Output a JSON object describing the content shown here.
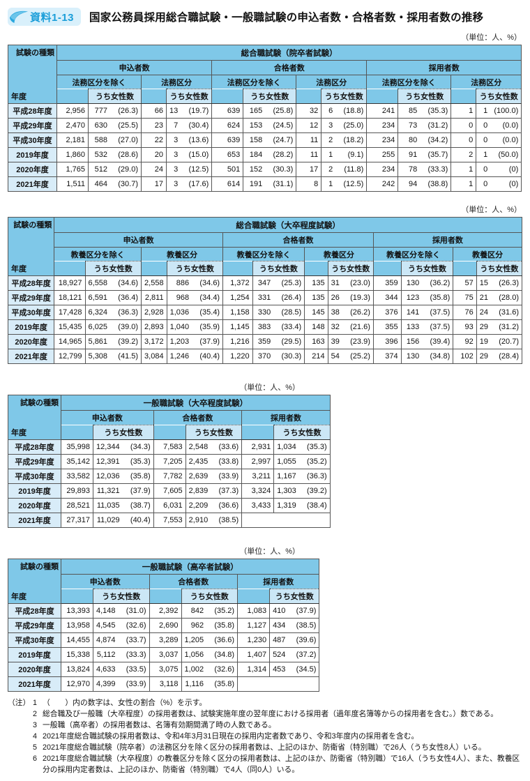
{
  "page": {
    "badge": "資料1-13",
    "title": "国家公務員採用総合職試験・一般職試験の申込者数・合格者数・採用者数の推移",
    "unit_label": "（単位：人、%）",
    "corner_top": "試験の種類",
    "corner_bottom": "年度"
  },
  "colors": {
    "header_blue": "#7fc8e8",
    "female_cell_blue": "#cbe7f6",
    "year_cell_blue": "#d8ecf8",
    "badge_bg": "#d9f0fb",
    "badge_text": "#1b9ed9",
    "border": "#333333"
  },
  "tables": [
    {
      "title": "総合職試験（院卒者試験）",
      "groups": [
        "申込者数",
        "合格者数",
        "採用者数"
      ],
      "division_labels": [
        "法務区分を除く",
        "法務区分"
      ],
      "female_label": "うち女性数",
      "rows": [
        {
          "year": "平成28年度",
          "cells": [
            "2,956",
            "777 (26.3)",
            "66",
            "13 (19.7)",
            "639",
            "165 (25.8)",
            "32",
            "6 (18.8)",
            "241",
            "85 (35.3)",
            "1",
            "1 (100.0)"
          ]
        },
        {
          "year": "平成29年度",
          "cells": [
            "2,470",
            "630 (25.5)",
            "23",
            "7 (30.4)",
            "624",
            "153 (24.5)",
            "12",
            "3 (25.0)",
            "234",
            "73 (31.2)",
            "0",
            "0 (0.0)"
          ]
        },
        {
          "year": "平成30年度",
          "cells": [
            "2,181",
            "588 (27.0)",
            "22",
            "3 (13.6)",
            "639",
            "158 (24.7)",
            "11",
            "2 (18.2)",
            "234",
            "80 (34.2)",
            "0",
            "0 (0.0)"
          ]
        },
        {
          "year": "2019年度",
          "cells": [
            "1,860",
            "532 (28.6)",
            "20",
            "3 (15.0)",
            "653",
            "184 (28.2)",
            "11",
            "1 (9.1)",
            "255",
            "91 (35.7)",
            "2",
            "1 (50.0)"
          ]
        },
        {
          "year": "2020年度",
          "cells": [
            "1,765",
            "512 (29.0)",
            "24",
            "3 (12.5)",
            "501",
            "152 (30.3)",
            "17",
            "2 (11.8)",
            "234",
            "78 (33.3)",
            "1",
            "0 (0)"
          ]
        },
        {
          "year": "2021年度",
          "cells": [
            "1,511",
            "464 (30.7)",
            "17",
            "3 (17.6)",
            "614",
            "191 (31.1)",
            "8",
            "1 (12.5)",
            "242",
            "94 (38.8)",
            "1",
            "0 (0)"
          ]
        }
      ]
    },
    {
      "title": "総合職試験（大卒程度試験）",
      "groups": [
        "申込者数",
        "合格者数",
        "採用者数"
      ],
      "division_labels": [
        "教養区分を除く",
        "教養区分"
      ],
      "female_label": "うち女性数",
      "rows": [
        {
          "year": "平成28年度",
          "cells": [
            "18,927",
            "6,558 (34.6)",
            "2,558",
            "886 (34.6)",
            "1,372",
            "347 (25.3)",
            "135",
            "31 (23.0)",
            "359",
            "130 (36.2)",
            "57",
            "15 (26.3)"
          ]
        },
        {
          "year": "平成29年度",
          "cells": [
            "18,121",
            "6,591 (36.4)",
            "2,811",
            "968 (34.4)",
            "1,254",
            "331 (26.4)",
            "135",
            "26 (19.3)",
            "344",
            "123 (35.8)",
            "75",
            "21 (28.0)"
          ]
        },
        {
          "year": "平成30年度",
          "cells": [
            "17,428",
            "6,324 (36.3)",
            "2,928",
            "1,036 (35.4)",
            "1,158",
            "330 (28.5)",
            "145",
            "38 (26.2)",
            "376",
            "141 (37.5)",
            "76",
            "24 (31.6)"
          ]
        },
        {
          "year": "2019年度",
          "cells": [
            "15,435",
            "6,025 (39.0)",
            "2,893",
            "1,040 (35.9)",
            "1,145",
            "383 (33.4)",
            "148",
            "32 (21.6)",
            "355",
            "133 (37.5)",
            "93",
            "29 (31.2)"
          ]
        },
        {
          "year": "2020年度",
          "cells": [
            "14,965",
            "5,861 (39.2)",
            "3,172",
            "1,203 (37.9)",
            "1,216",
            "359 (29.5)",
            "163",
            "39 (23.9)",
            "396",
            "156 (39.4)",
            "92",
            "19 (20.7)"
          ]
        },
        {
          "year": "2021年度",
          "cells": [
            "12,799",
            "5,308 (41.5)",
            "3,084",
            "1,246 (40.4)",
            "1,220",
            "370 (30.3)",
            "214",
            "54 (25.2)",
            "374",
            "130 (34.8)",
            "102",
            "29 (28.4)"
          ]
        }
      ]
    },
    {
      "title": "一般職試験（大卒程度試験）",
      "groups": [
        "申込者数",
        "合格者数",
        "採用者数"
      ],
      "female_label": "うち女性数",
      "rows": [
        {
          "year": "平成28年度",
          "cells": [
            "35,998",
            "12,344 (34.3)",
            "7,583",
            "2,548 (33.6)",
            "2,931",
            "1,034 (35.3)"
          ]
        },
        {
          "year": "平成29年度",
          "cells": [
            "35,142",
            "12,391 (35.3)",
            "7,205",
            "2,435 (33.8)",
            "2,997",
            "1,055 (35.2)"
          ]
        },
        {
          "year": "平成30年度",
          "cells": [
            "33,582",
            "12,036 (35.8)",
            "7,782",
            "2,639 (33.9)",
            "3,211",
            "1,167 (36.3)"
          ]
        },
        {
          "year": "2019年度",
          "cells": [
            "29,893",
            "11,321 (37.9)",
            "7,605",
            "2,839 (37.3)",
            "3,324",
            "1,303 (39.2)"
          ]
        },
        {
          "year": "2020年度",
          "cells": [
            "28,521",
            "11,035 (38.7)",
            "6,031",
            "2,209 (36.6)",
            "3,433",
            "1,319 (38.4)"
          ]
        },
        {
          "year": "2021年度",
          "cells": [
            "27,317",
            "11,029 (40.4)",
            "7,553",
            "2,910 (38.5)"
          ],
          "no_data_last_group": true
        }
      ]
    },
    {
      "title": "一般職試験（高卒者試験）",
      "groups": [
        "申込者数",
        "合格者数",
        "採用者数"
      ],
      "female_label": "うち女性数",
      "rows": [
        {
          "year": "平成28年度",
          "cells": [
            "13,393",
            "4,148 (31.0)",
            "2,392",
            "842 (35.2)",
            "1,083",
            "410 (37.9)"
          ]
        },
        {
          "year": "平成29年度",
          "cells": [
            "13,958",
            "4,545 (32.6)",
            "2,690",
            "962 (35.8)",
            "1,127",
            "434 (38.5)"
          ]
        },
        {
          "year": "平成30年度",
          "cells": [
            "14,455",
            "4,874 (33.7)",
            "3,289",
            "1,205 (36.6)",
            "1,230",
            "487 (39.6)"
          ]
        },
        {
          "year": "2019年度",
          "cells": [
            "15,338",
            "5,112 (33.3)",
            "3,037",
            "1,056 (34.8)",
            "1,407",
            "524 (37.2)"
          ]
        },
        {
          "year": "2020年度",
          "cells": [
            "13,824",
            "4,633 (33.5)",
            "3,075",
            "1,002 (32.6)",
            "1,314",
            "453 (34.5)"
          ]
        },
        {
          "year": "2021年度",
          "cells": [
            "12,970",
            "4,399 (33.9)",
            "3,118",
            "1,116 (35.8)"
          ],
          "no_data_last_group": true
        }
      ]
    }
  ],
  "notes": {
    "label": "（注）",
    "items": [
      {
        "num": "1",
        "text": "（　　）内の数字は、女性の割合（%）を示す。"
      },
      {
        "num": "2",
        "text": "総合職及び一般職（大卒程度）の採用者数は、試験実施年度の翌年度における採用者（過年度名簿等からの採用者を含む。）数である。"
      },
      {
        "num": "3",
        "text": "一般職（高卒者）の採用者数は、名簿有効期間満了時の人数である。"
      },
      {
        "num": "4",
        "text": "2021年度総合職試験の採用者数は、令和4年3月31日現在の採用内定者数であり、令和3年度内の採用者を含む。"
      },
      {
        "num": "5",
        "text": "2021年度総合職試験（院卒者）の法務区分を除く区分の採用者数は、上記のほか、防衛省（特別職）で26人（うち女性8人）いる。"
      },
      {
        "num": "6",
        "text": "2021年度総合職試験（大卒程度）の教養区分を除く区分の採用者数は、上記のほか、防衛省（特別職）で16人（うち女性4人）、また、教養区分の採用内定者数は、上記のほか、防衛省（特別職）で4人（同0人）いる。"
      }
    ]
  }
}
